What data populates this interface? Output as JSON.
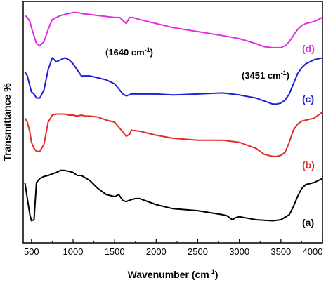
{
  "chart_data": {
    "type": "line",
    "xlabel": "Wavenumber (cm",
    "xlabel_sup": "-1",
    "xlabel_end": ")",
    "ylabel": "Transmittance %",
    "xlim": [
      400,
      4000
    ],
    "x_ticks": [
      "500",
      "1000",
      "1500",
      "2000",
      "2500",
      "3000",
      "3500",
      "4000"
    ],
    "y_ticks_shown": false,
    "grid": false,
    "legend": "labels at right end of each curve",
    "annotations": [
      {
        "pre": "(1640 cm",
        "sup": "-1",
        "post": ")"
      },
      {
        "pre": "(3451 cm",
        "sup": "-1",
        "post": ")"
      }
    ],
    "series": [
      {
        "name": "(a)",
        "color": "#000000",
        "x": [
          420,
          450,
          480,
          500,
          530,
          560,
          600,
          650,
          700,
          800,
          850,
          900,
          950,
          1000,
          1050,
          1100,
          1200,
          1300,
          1400,
          1450,
          1500,
          1550,
          1600,
          1640,
          1700,
          1750,
          1800,
          2000,
          2200,
          2500,
          2800,
          2850,
          2900,
          2920,
          2950,
          3000,
          3200,
          3400,
          3500,
          3600,
          3650,
          3700,
          3750,
          3800,
          3900,
          4000
        ],
        "y": [
          20,
          12,
          4,
          1,
          1.5,
          20,
          22,
          23,
          23.5,
          25,
          26,
          26,
          25.5,
          25,
          23.5,
          23.5,
          21,
          17,
          14,
          13.5,
          13,
          14,
          11,
          10.5,
          11.5,
          12,
          12,
          9,
          7,
          6,
          4,
          3.5,
          2,
          1.5,
          2.5,
          3,
          1.5,
          1,
          1.5,
          4,
          8,
          13,
          17,
          19,
          20,
          22
        ]
      },
      {
        "name": "(b)",
        "color": "#e32d27",
        "x": [
          420,
          450,
          480,
          500,
          530,
          560,
          600,
          650,
          700,
          750,
          800,
          850,
          900,
          950,
          1000,
          1050,
          1100,
          1150,
          1200,
          1300,
          1400,
          1500,
          1560,
          1600,
          1640,
          1680,
          1700,
          1800,
          2000,
          2200,
          2500,
          2800,
          3000,
          3200,
          3300,
          3400,
          3451,
          3500,
          3550,
          3600,
          3650,
          3700,
          3750,
          3800,
          3900,
          4000
        ],
        "y": [
          52,
          50,
          45,
          40,
          37,
          35.5,
          35.5,
          39,
          50,
          53.5,
          54,
          54,
          54,
          53.5,
          53.5,
          53,
          53.5,
          53,
          53,
          52.5,
          51,
          50,
          47,
          45,
          43,
          44,
          46,
          45.5,
          43.5,
          42,
          41,
          41,
          40,
          37,
          34,
          33,
          33,
          33.5,
          35,
          40,
          46,
          49,
          50.5,
          51,
          52,
          55
        ]
      },
      {
        "name": "(c)",
        "color": "#1f1fd6",
        "x": [
          420,
          450,
          480,
          500,
          530,
          560,
          600,
          650,
          700,
          750,
          800,
          850,
          900,
          950,
          1000,
          1050,
          1100,
          1200,
          1300,
          1400,
          1500,
          1560,
          1600,
          1640,
          1700,
          1800,
          2000,
          2200,
          2500,
          2800,
          3000,
          3200,
          3300,
          3400,
          3451,
          3500,
          3550,
          3600,
          3650,
          3700,
          3750,
          3800,
          3900,
          4000
        ],
        "y": [
          75,
          73,
          68,
          65,
          64,
          62,
          62,
          66,
          76,
          82,
          80,
          81,
          82,
          81,
          79,
          76,
          73,
          73,
          72,
          71,
          69,
          66,
          64,
          63,
          64,
          64,
          64,
          63.5,
          64,
          64.5,
          63.5,
          62,
          60.5,
          59,
          59,
          59.5,
          61,
          64,
          69,
          74,
          77,
          79,
          81,
          82
        ]
      },
      {
        "name": "(d)",
        "color": "#e32de0",
        "x": [
          420,
          450,
          480,
          500,
          530,
          560,
          600,
          650,
          700,
          750,
          800,
          850,
          900,
          950,
          1000,
          1050,
          1100,
          1200,
          1300,
          1400,
          1500,
          1560,
          1600,
          1640,
          1680,
          1720,
          1800,
          2000,
          2200,
          2500,
          2800,
          3000,
          3200,
          3300,
          3400,
          3451,
          3500,
          3550,
          3600,
          3650,
          3700,
          3750,
          3800,
          3900,
          4000
        ],
        "y": [
          103,
          102,
          100,
          97,
          93,
          89,
          88,
          90,
          96,
          101,
          102,
          103,
          103.5,
          104,
          104.5,
          104.5,
          104,
          103.5,
          103,
          102.5,
          102,
          102,
          100.5,
          99,
          102,
          102,
          101,
          99,
          97,
          95,
          93,
          91.5,
          89,
          87.5,
          87,
          87,
          87,
          88,
          90,
          93,
          96,
          98,
          99,
          100,
          102
        ]
      }
    ]
  }
}
